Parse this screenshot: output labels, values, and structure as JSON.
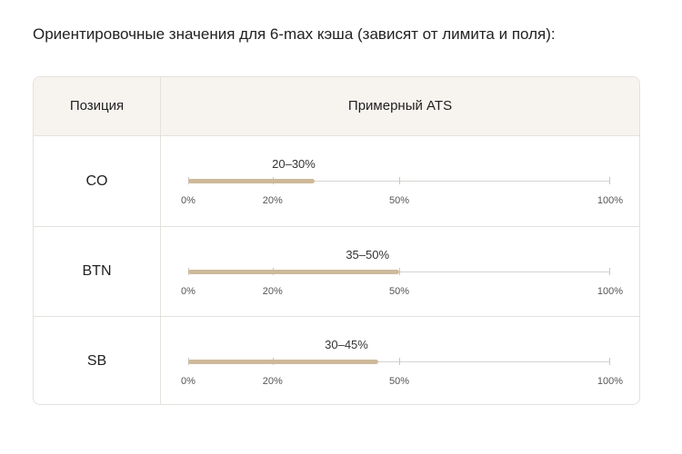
{
  "intro": "Ориентировочные значения для 6-max кэша (зависят от лимита и поля):",
  "table": {
    "headers": {
      "position": "Позиция",
      "ats": "Примерный ATS"
    },
    "axis_ticks": [
      "0%",
      "20%",
      "50%",
      "100%"
    ],
    "rows": [
      {
        "position": "CO",
        "range_label": "20–30%",
        "low": 20,
        "high": 30
      },
      {
        "position": "BTN",
        "range_label": "35–50%",
        "low": 35,
        "high": 50
      },
      {
        "position": "SB",
        "range_label": "30–45%",
        "low": 30,
        "high": 45
      }
    ]
  },
  "colors": {
    "bar": "#cdb99a",
    "axis": "#d6d3cf",
    "border": "#e4e1dc",
    "header_bg": "#f7f3ef"
  }
}
